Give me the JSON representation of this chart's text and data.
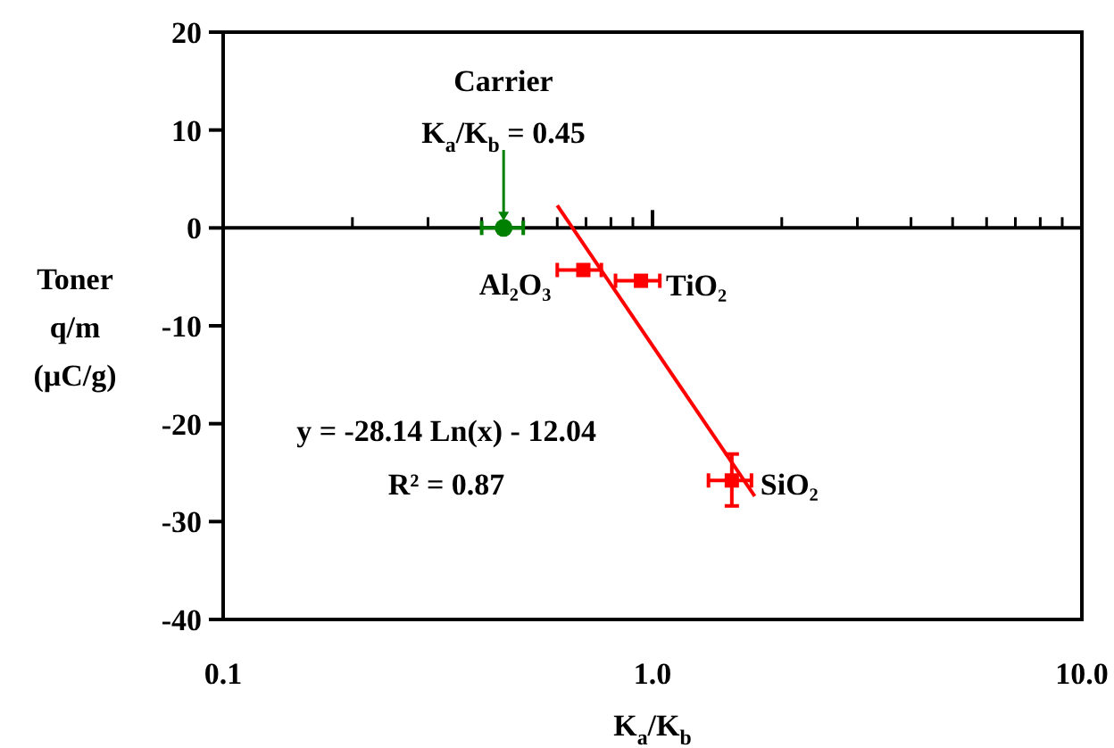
{
  "chart_data": {
    "type": "scatter",
    "xlabel": "K$_{a}$/K$_{b}$",
    "ylabel": "Toner\nq/m\n(µC/g)",
    "log": "x",
    "xlim": [
      0.1,
      10
    ],
    "xticks": [
      0.1,
      {
        "value": 1,
        "label": "1.0"
      },
      {
        "value": 10,
        "label": "10.0"
      }
    ],
    "ylim": [
      -40,
      20
    ],
    "yticks": [
      -40,
      -30,
      -20,
      -10,
      0,
      10,
      20
    ],
    "series": [
      {
        "color": "#008000",
        "marker": "circle",
        "x": [
          0.45
        ],
        "values": [
          0
        ],
        "xerrors": [
          [
            0.4,
            0.5
          ]
        ]
      },
      {
        "name": "Al₂O₃",
        "color": "#ff0000",
        "marker": "square",
        "x": [
          0.69
        ],
        "values": [
          -4.3
        ],
        "xerrors": [
          [
            0.6,
            0.76
          ]
        ]
      },
      {
        "name": "TiO₂",
        "color": "#ff0000",
        "marker": "square",
        "x": [
          0.94
        ],
        "values": [
          -5.4
        ],
        "xerrors": [
          [
            0.82,
            1.04
          ]
        ]
      },
      {
        "name": "SiO₂",
        "color": "#ff0000",
        "marker": "square",
        "x": [
          1.53
        ],
        "values": [
          -25.8
        ],
        "xerrors": [
          [
            1.35,
            1.7
          ]
        ],
        "errors": [
          [
            -28.4,
            -23.1
          ]
        ]
      },
      {
        "type": "line",
        "color": "#ff0000",
        "marker": "none",
        "x": [
          0.6,
          1.73
        ],
        "values": [
          2.3,
          -27.4
        ]
      }
    ],
    "annotations": [
      "Carrier",
      {
        "text": "K$_{a}$/K$_{b}$ = 0.45",
        "x": 0.45,
        "y": 0
      },
      "y = -28.14 Ln(x) - 12.04",
      "R² = 0.87"
    ]
  }
}
